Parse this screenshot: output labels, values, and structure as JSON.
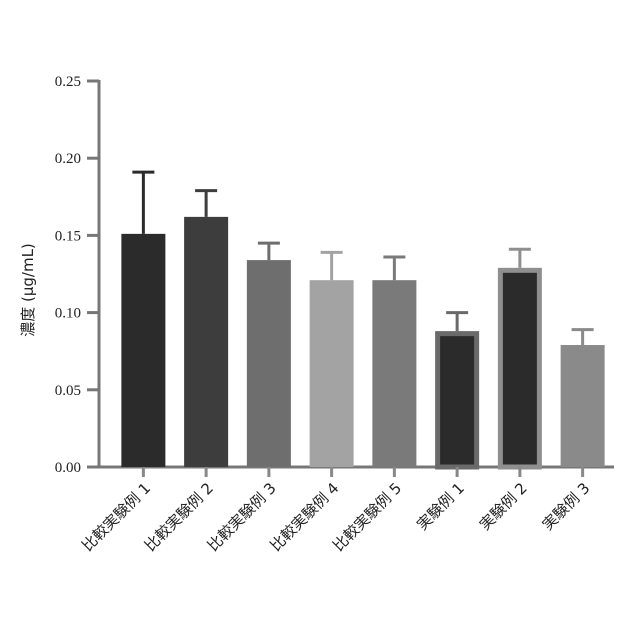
{
  "chart_data": {
    "type": "bar",
    "title": "",
    "xlabel": "",
    "ylabel": "濃度 (μg/mL)",
    "ylim": [
      0,
      0.25
    ],
    "yticks": [
      "0.00",
      "0.05",
      "0.10",
      "0.15",
      "0.20",
      "0.25"
    ],
    "categories": [
      "比較実験例 1",
      "比較実験例 2",
      "比較実験例 3",
      "比較実験例 4",
      "比較実験例 5",
      "実験例 1",
      "実験例 2",
      "実験例 3"
    ],
    "values": [
      0.151,
      0.162,
      0.134,
      0.121,
      0.121,
      0.088,
      0.129,
      0.079
    ],
    "errors": [
      0.04,
      0.017,
      0.011,
      0.018,
      0.015,
      0.012,
      0.012,
      0.01
    ],
    "colors": [
      "#2b2b2b",
      "#3d3d3d",
      "#6e6e6e",
      "#a3a3a3",
      "#7a7a7a",
      "#2b2b2b",
      "#2b2b2b",
      "#8a8a8a"
    ],
    "outline_colors": [
      "",
      "",
      "",
      "",
      "",
      "#6a6a6a",
      "#8f8f8f",
      ""
    ],
    "grid": false,
    "legend": "none"
  }
}
